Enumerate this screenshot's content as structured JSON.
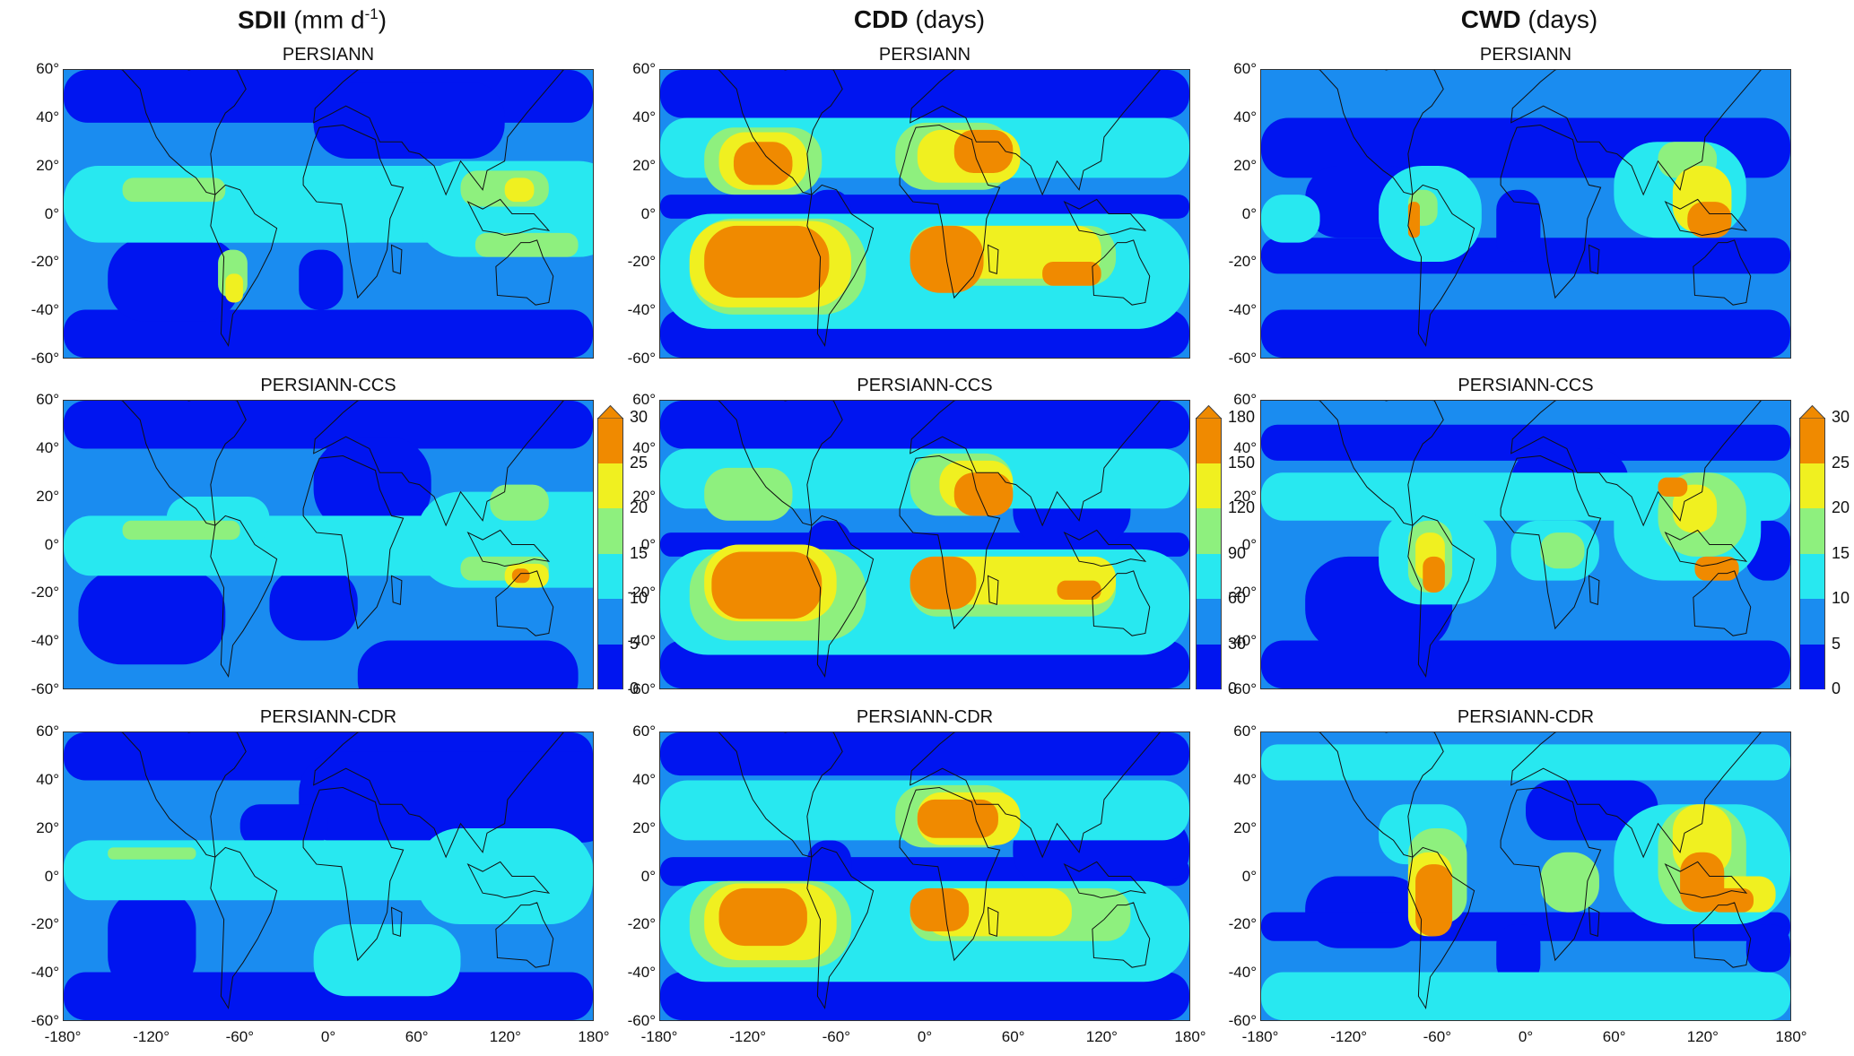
{
  "columns": [
    {
      "id": "sdii",
      "bold": "SDII",
      "rest": " (mm  d",
      "sup": "-1",
      "close": ")"
    },
    {
      "id": "cdd",
      "bold": "CDD",
      "rest": " (days)",
      "sup": "",
      "close": ""
    },
    {
      "id": "cwd",
      "bold": "CWD",
      "rest": " (days)",
      "sup": "",
      "close": ""
    }
  ],
  "products": [
    "PERSIANN",
    "PERSIANN-CCS",
    "PERSIANN-CDR"
  ],
  "colors": {
    "bin1": "#0015f0",
    "bin2": "#1a8cf0",
    "bin3": "#28e8f0",
    "bin4": "#8ef07e",
    "bin5": "#f0f020",
    "bin6": "#f08a00",
    "land_outline": "#101010"
  },
  "y_ticks": [
    "60°",
    "40°",
    "20°",
    "0°",
    "-20°",
    "-40°",
    "-60°"
  ],
  "x_ticks": [
    "-180°",
    "-120°",
    "-60°",
    "0°",
    "60°",
    "120°",
    "180°"
  ],
  "colorbars": [
    {
      "labels": [
        "0",
        "5",
        "10",
        "15",
        "20",
        "25",
        "30"
      ]
    },
    {
      "labels": [
        "0",
        "30",
        "60",
        "90",
        "120",
        "150",
        "180"
      ]
    },
    {
      "labels": [
        "0",
        "5",
        "10",
        "15",
        "20",
        "25",
        "30"
      ]
    }
  ]
}
